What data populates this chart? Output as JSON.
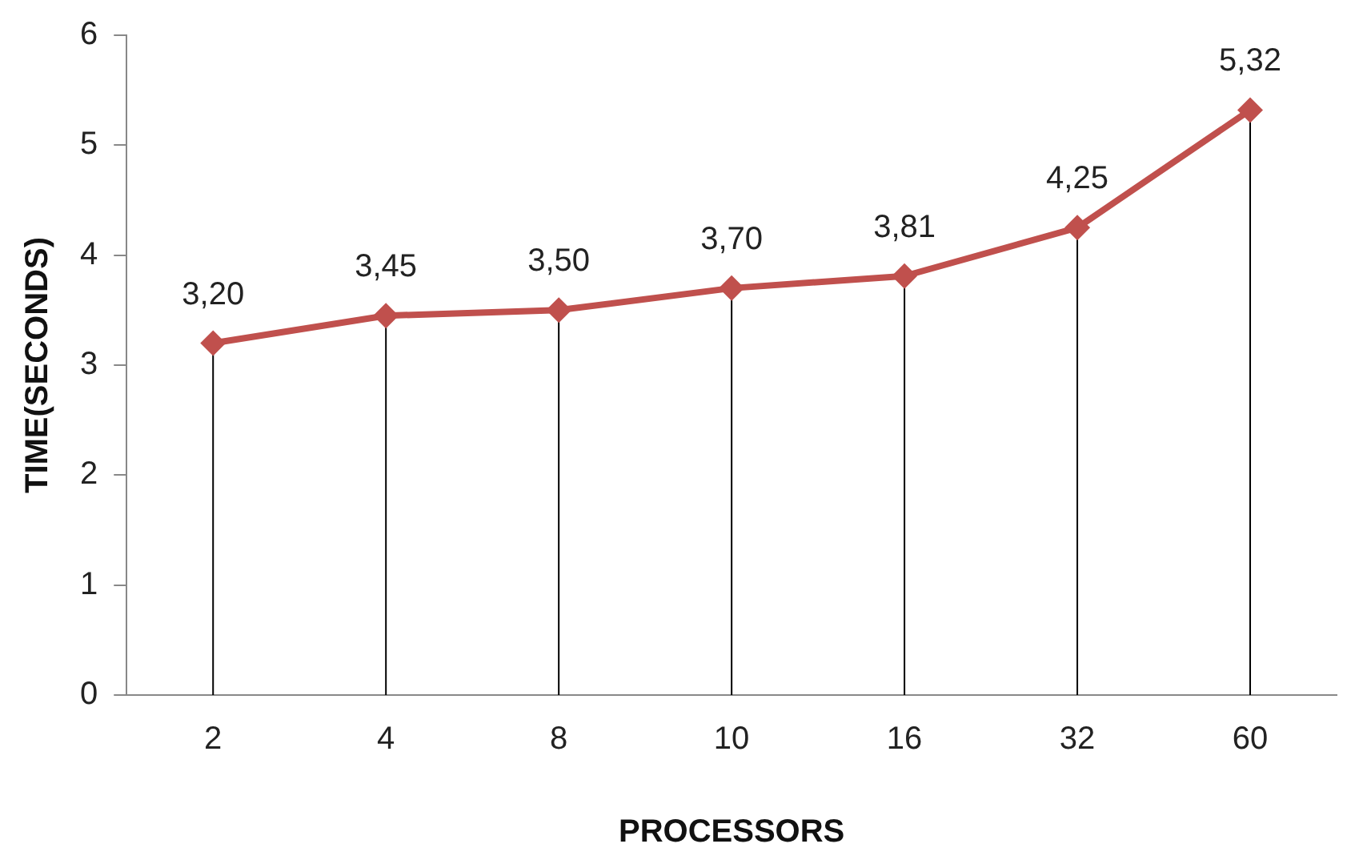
{
  "chart_data": {
    "type": "line",
    "xlabel": "PROCESSORS",
    "ylabel": "TIME(SECONDS)",
    "categories": [
      "2",
      "4",
      "8",
      "10",
      "16",
      "32",
      "60"
    ],
    "series": [
      {
        "color": "#c0504d",
        "values": [
          3.2,
          3.45,
          3.5,
          3.7,
          3.81,
          4.25,
          5.32
        ],
        "value_labels": [
          "3,20",
          "3,45",
          "3,50",
          "3,70",
          "3,81",
          "4,25",
          "5,32"
        ]
      }
    ],
    "ylim": [
      0,
      6
    ],
    "yticks": [
      0,
      1,
      2,
      3,
      4,
      5,
      6
    ],
    "grid": "x",
    "legend": false,
    "marker": "diamond",
    "line_style": "solid"
  }
}
